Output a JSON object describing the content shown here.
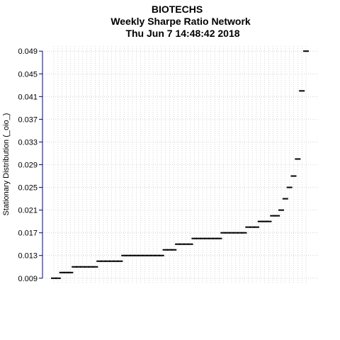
{
  "chart_data": {
    "type": "dot",
    "title": [
      "BIOTECHS",
      "Weekly  Sharpe Ratio Network",
      "Thu Jun  7 14:48:42 2018"
    ],
    "y_label": "Stationary Distribution (_oio_)",
    "categories": [
      null,
      null,
      null,
      null,
      null,
      null,
      null,
      null,
      null,
      null,
      null,
      null,
      null,
      null,
      null,
      null,
      null,
      null,
      null,
      null,
      null,
      null,
      null,
      null,
      null,
      null,
      null,
      null,
      null,
      null,
      null,
      null,
      null,
      null,
      null,
      null,
      null,
      null,
      null,
      null,
      null,
      null,
      null,
      null,
      null,
      null,
      null,
      null,
      null,
      null,
      null,
      null,
      null,
      null,
      null,
      null,
      null,
      null,
      null,
      null,
      null,
      null
    ],
    "values": [
      0.009,
      0.009,
      0.01,
      0.01,
      0.01,
      0.011,
      0.011,
      0.011,
      0.011,
      0.011,
      0.011,
      0.012,
      0.012,
      0.012,
      0.012,
      0.012,
      0.012,
      0.013,
      0.013,
      0.013,
      0.013,
      0.013,
      0.013,
      0.013,
      0.013,
      0.013,
      0.013,
      0.014,
      0.014,
      0.014,
      0.015,
      0.015,
      0.015,
      0.015,
      0.016,
      0.016,
      0.016,
      0.016,
      0.016,
      0.016,
      0.016,
      0.017,
      0.017,
      0.017,
      0.017,
      0.017,
      0.017,
      0.018,
      0.018,
      0.018,
      0.019,
      0.019,
      0.019,
      0.02,
      0.02,
      0.021,
      0.023,
      0.025,
      0.027,
      0.03,
      0.042,
      0.049
    ],
    "color": "#000000",
    "axis_color": "#00008b",
    "ylim": [
      0.0081,
      0.0499
    ],
    "yticks": [
      0.009,
      0.013,
      0.017,
      0.021,
      0.025,
      0.029,
      0.033,
      0.037,
      0.041,
      0.045,
      0.049
    ],
    "grid": true
  }
}
